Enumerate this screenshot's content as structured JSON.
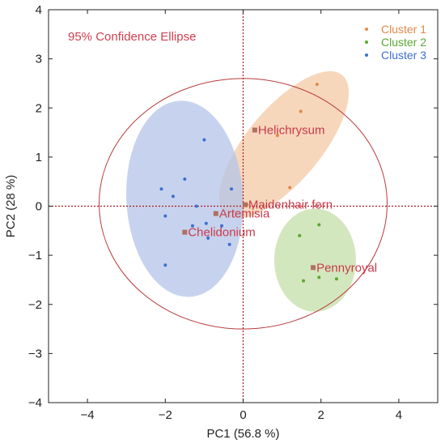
{
  "chart_data": {
    "type": "scatter",
    "xlabel": "PC1  (56.8 %)",
    "ylabel": "PC2  (28 %)",
    "xlim": [
      -5,
      5
    ],
    "ylim": [
      -4,
      4
    ],
    "x_ticks": [
      -4,
      -2,
      0,
      2,
      4
    ],
    "y_ticks": [
      -4,
      -3,
      -2,
      -1,
      0,
      1,
      2,
      3,
      4
    ],
    "grid": false,
    "legend_position": "top-right",
    "confidence_label": "95% Confidence Ellipse",
    "confidence_ellipse": {
      "center": [
        0,
        0.05
      ],
      "rx": 3.7,
      "ry": 2.55
    },
    "reference_lines": {
      "x": 0,
      "y": 0
    },
    "series": [
      {
        "name": "Cluster 1",
        "color": "#e08a4a",
        "fill": "#f4c9a6",
        "points": [
          [
            1.9,
            2.48
          ],
          [
            1.48,
            1.93
          ],
          [
            0.88,
            1.44
          ],
          [
            1.2,
            0.38
          ],
          [
            0.1,
            0.03
          ]
        ],
        "ellipse": {
          "center": [
            1.05,
            1.25
          ],
          "rx": 0.95,
          "ry": 1.85,
          "angle": 40
        }
      },
      {
        "name": "Cluster 2",
        "color": "#5aa832",
        "fill": "#c4dfa8",
        "points": [
          [
            1.95,
            -0.38
          ],
          [
            1.45,
            -0.6
          ],
          [
            1.95,
            -1.45
          ],
          [
            1.55,
            -1.52
          ],
          [
            2.4,
            -1.48
          ]
        ],
        "ellipse": {
          "center": [
            1.85,
            -1.1
          ],
          "rx": 1.05,
          "ry": 1.05,
          "angle": 0
        }
      },
      {
        "name": "Cluster 3",
        "color": "#3c6fd2",
        "fill": "#b4c4e8",
        "points": [
          [
            -1.0,
            1.35
          ],
          [
            -1.5,
            0.55
          ],
          [
            -2.1,
            0.35
          ],
          [
            -1.8,
            0.2
          ],
          [
            -1.2,
            0.0
          ],
          [
            -0.3,
            0.35
          ],
          [
            -2.0,
            -0.2
          ],
          [
            -0.95,
            -0.35
          ],
          [
            -0.55,
            -0.4
          ],
          [
            -0.9,
            -0.65
          ],
          [
            -1.3,
            -0.4
          ],
          [
            -0.35,
            -0.78
          ],
          [
            -2.0,
            -1.2
          ]
        ],
        "ellipse": {
          "center": [
            -1.5,
            0.15
          ],
          "rx": 1.5,
          "ry": 2.0,
          "angle": -3
        }
      }
    ],
    "labeled_points": [
      {
        "label": "Helichrysum",
        "x": 0.3,
        "y": 1.55
      },
      {
        "label": "Maidenhair fern",
        "x": 0.05,
        "y": 0.03
      },
      {
        "label": "Artemisia",
        "x": -0.7,
        "y": -0.15
      },
      {
        "label": "Chelidonium",
        "x": -1.5,
        "y": -0.53
      },
      {
        "label": "Pennyroyal",
        "x": 1.8,
        "y": -1.25
      }
    ]
  }
}
